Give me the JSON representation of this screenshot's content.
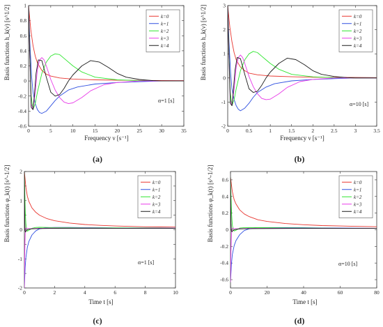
{
  "figure": {
    "panels": [
      {
        "caption": "(a)"
      },
      {
        "caption": "(b)"
      },
      {
        "caption": "(c)"
      },
      {
        "caption": "(d)"
      }
    ]
  },
  "chart_data": [
    {
      "type": "line",
      "title": "",
      "xlabel": "Frequency  ν [s⁻¹]",
      "ylabel": "Basis functions  h_k(ν) [s^1/2]",
      "xlim": [
        0,
        35
      ],
      "ylim": [
        -0.6,
        1.0
      ],
      "xticks": [
        0,
        5,
        10,
        15,
        20,
        25,
        30,
        35
      ],
      "yticks": [
        -0.6,
        -0.4,
        -0.2,
        0,
        0.2,
        0.4,
        0.6,
        0.8,
        1
      ],
      "ytick_labels": [
        "-0.6",
        "-0.4",
        "-0.2",
        "0",
        "0.2",
        "0.4",
        "0.6",
        "0.8",
        "1"
      ],
      "grid": false,
      "legend_position": "top-right",
      "annotation": "α=1 [s]",
      "series": [
        {
          "name": "k=0",
          "color": "#e8352f",
          "x": [
            0,
            0.5,
            1,
            1.5,
            2,
            3,
            4,
            5,
            7,
            10,
            15,
            20,
            25,
            30,
            35
          ],
          "y": [
            1.0,
            0.68,
            0.47,
            0.33,
            0.24,
            0.14,
            0.09,
            0.065,
            0.04,
            0.025,
            0.015,
            0.01,
            0.008,
            0.006,
            0.005
          ]
        },
        {
          "name": "k=1",
          "color": "#2e4fe0",
          "x": [
            0,
            0.3,
            0.7,
            1,
            1.5,
            2,
            2.5,
            3,
            4,
            5,
            6,
            7,
            9,
            11,
            15,
            20,
            25,
            30,
            35
          ],
          "y": [
            1.0,
            0.5,
            0.05,
            -0.15,
            -0.3,
            -0.38,
            -0.42,
            -0.43,
            -0.4,
            -0.33,
            -0.26,
            -0.2,
            -0.12,
            -0.08,
            -0.04,
            -0.02,
            -0.01,
            0,
            0
          ]
        },
        {
          "name": "k=2",
          "color": "#2ee62e",
          "x": [
            0,
            0.3,
            0.6,
            1,
            1.5,
            2,
            3,
            4,
            5,
            6,
            7,
            8,
            10,
            12,
            15,
            20,
            25,
            30,
            35
          ],
          "y": [
            1.0,
            0.35,
            -0.2,
            -0.38,
            -0.3,
            -0.15,
            0.1,
            0.25,
            0.33,
            0.36,
            0.35,
            0.3,
            0.2,
            0.12,
            0.05,
            0.015,
            0.005,
            0,
            0
          ]
        },
        {
          "name": "k=3",
          "color": "#e83ae8",
          "x": [
            0,
            0.3,
            0.6,
            1,
            1.5,
            2,
            2.5,
            3,
            3.5,
            4,
            5,
            6,
            7,
            8,
            9,
            10,
            12,
            14,
            17,
            20,
            25,
            30,
            35
          ],
          "y": [
            1.0,
            0.3,
            -0.3,
            -0.38,
            -0.15,
            0.15,
            0.28,
            0.31,
            0.28,
            0.2,
            0.02,
            -0.12,
            -0.22,
            -0.28,
            -0.3,
            -0.29,
            -0.22,
            -0.13,
            -0.05,
            -0.02,
            0,
            0,
            0
          ]
        },
        {
          "name": "k=4",
          "color": "#1a1a1a",
          "x": [
            0,
            0.3,
            0.6,
            1,
            1.3,
            1.7,
            2.2,
            3,
            4,
            5,
            6,
            7,
            8,
            9,
            10,
            12,
            14,
            16,
            18,
            20,
            22,
            25,
            28,
            30,
            35
          ],
          "y": [
            1.0,
            0.3,
            -0.35,
            -0.38,
            -0.2,
            0.1,
            0.28,
            0.27,
            0.05,
            -0.15,
            -0.2,
            -0.18,
            -0.1,
            0,
            0.08,
            0.2,
            0.27,
            0.25,
            0.18,
            0.1,
            0.05,
            0.02,
            0.005,
            0,
            0
          ]
        }
      ]
    },
    {
      "type": "line",
      "title": "",
      "xlabel": "Frequency  ν [s⁻¹]",
      "ylabel": "Basis functions  h_k(ν) [s^1/2]",
      "xlim": [
        0,
        3.5
      ],
      "ylim": [
        -2,
        3
      ],
      "xticks": [
        0,
        0.5,
        1,
        1.5,
        2,
        2.5,
        3,
        3.5
      ],
      "yticks": [
        -2,
        -1,
        0,
        1,
        2,
        3
      ],
      "ytick_labels": [
        "-2",
        "-1",
        "0",
        "1",
        "2",
        "3"
      ],
      "grid": false,
      "legend_position": "top-right",
      "annotation": "α=10 [s]",
      "series": [
        {
          "name": "k=0",
          "color": "#e8352f",
          "x": [
            0,
            0.05,
            0.1,
            0.15,
            0.2,
            0.3,
            0.4,
            0.5,
            0.7,
            1,
            1.5,
            2,
            2.5,
            3,
            3.5
          ],
          "y": [
            3.0,
            2.1,
            1.5,
            1.05,
            0.75,
            0.45,
            0.3,
            0.2,
            0.13,
            0.08,
            0.05,
            0.03,
            0.025,
            0.02,
            0.015
          ]
        },
        {
          "name": "k=1",
          "color": "#2e4fe0",
          "x": [
            0,
            0.03,
            0.07,
            0.1,
            0.15,
            0.2,
            0.25,
            0.3,
            0.4,
            0.5,
            0.6,
            0.7,
            0.9,
            1.1,
            1.5,
            2,
            2.5,
            3,
            3.5
          ],
          "y": [
            3.0,
            1.5,
            0.15,
            -0.45,
            -0.9,
            -1.15,
            -1.3,
            -1.36,
            -1.25,
            -1.05,
            -0.8,
            -0.6,
            -0.38,
            -0.24,
            -0.12,
            -0.06,
            -0.03,
            0,
            0
          ]
        },
        {
          "name": "k=2",
          "color": "#2ee62e",
          "x": [
            0,
            0.03,
            0.06,
            0.1,
            0.15,
            0.2,
            0.3,
            0.4,
            0.5,
            0.6,
            0.7,
            0.8,
            1,
            1.2,
            1.5,
            2,
            2.5,
            3,
            3.5
          ],
          "y": [
            3.0,
            1.05,
            -0.6,
            -1.15,
            -0.9,
            -0.45,
            0.3,
            0.75,
            1.0,
            1.1,
            1.05,
            0.9,
            0.6,
            0.36,
            0.15,
            0.045,
            0.015,
            0,
            0
          ]
        },
        {
          "name": "k=3",
          "color": "#e83ae8",
          "x": [
            0,
            0.03,
            0.06,
            0.1,
            0.15,
            0.2,
            0.25,
            0.3,
            0.35,
            0.4,
            0.5,
            0.6,
            0.7,
            0.8,
            0.9,
            1,
            1.2,
            1.4,
            1.7,
            2,
            2.5,
            3,
            3.5
          ],
          "y": [
            3.0,
            0.9,
            -0.9,
            -1.15,
            -0.45,
            0.45,
            0.85,
            0.95,
            0.85,
            0.6,
            0.06,
            -0.36,
            -0.66,
            -0.85,
            -0.9,
            -0.88,
            -0.66,
            -0.39,
            -0.15,
            -0.06,
            0,
            0,
            0
          ]
        },
        {
          "name": "k=4",
          "color": "#1a1a1a",
          "x": [
            0,
            0.03,
            0.06,
            0.1,
            0.13,
            0.17,
            0.22,
            0.3,
            0.4,
            0.5,
            0.6,
            0.7,
            0.8,
            0.9,
            1,
            1.2,
            1.4,
            1.6,
            1.8,
            2,
            2.2,
            2.5,
            2.8,
            3,
            3.5
          ],
          "y": [
            3.0,
            0.9,
            -1.05,
            -1.15,
            -0.6,
            0.3,
            0.85,
            0.8,
            0.15,
            -0.45,
            -0.6,
            -0.55,
            -0.3,
            0,
            0.24,
            0.6,
            0.82,
            0.76,
            0.55,
            0.3,
            0.15,
            0.06,
            0.015,
            0,
            0
          ]
        }
      ]
    },
    {
      "type": "line",
      "title": "",
      "xlabel": "Time  t [s]",
      "ylabel": "Basis functions  φ_k(t) [s^-1/2]",
      "xlim": [
        0,
        10
      ],
      "ylim": [
        -2,
        2
      ],
      "xticks": [
        0,
        2,
        4,
        6,
        8,
        10
      ],
      "yticks": [
        -2,
        -1.5,
        -1,
        -0.5,
        0,
        0.5,
        1,
        1.5,
        2
      ],
      "ytick_labels": [
        "-2",
        "",
        "-1",
        "",
        "0",
        "",
        "1",
        "",
        "2"
      ],
      "grid": false,
      "legend_position": "top-right",
      "annotation": "α=1 [s]",
      "series": [
        {
          "name": "k=0",
          "color": "#e8352f",
          "x": [
            0,
            0.1,
            0.2,
            0.3,
            0.5,
            0.75,
            1,
            1.5,
            2,
            3,
            4,
            5,
            6,
            7,
            8,
            9,
            10
          ],
          "y": [
            2.0,
            1.45,
            1.15,
            0.97,
            0.75,
            0.6,
            0.5,
            0.38,
            0.31,
            0.23,
            0.18,
            0.15,
            0.13,
            0.115,
            0.1,
            0.095,
            0.09
          ]
        },
        {
          "name": "k=1",
          "color": "#2e4fe0",
          "x": [
            0,
            0.05,
            0.1,
            0.2,
            0.3,
            0.5,
            0.75,
            1,
            1.5,
            2,
            3,
            4,
            5,
            6,
            8,
            10
          ],
          "y": [
            -2.0,
            -1.3,
            -0.95,
            -0.6,
            -0.4,
            -0.18,
            -0.04,
            0.03,
            0.07,
            0.08,
            0.08,
            0.075,
            0.07,
            0.065,
            0.06,
            0.055
          ]
        },
        {
          "name": "k=2",
          "color": "#2ee62e",
          "x": [
            0,
            0.03,
            0.06,
            0.1,
            0.15,
            0.2,
            0.3,
            0.5,
            0.75,
            1,
            1.5,
            2,
            3,
            4,
            6,
            8,
            10
          ],
          "y": [
            2.0,
            1.2,
            0.6,
            0.2,
            0.0,
            -0.05,
            -0.02,
            0.05,
            0.08,
            0.085,
            0.08,
            0.075,
            0.07,
            0.065,
            0.06,
            0.055,
            0.05
          ]
        },
        {
          "name": "k=3",
          "color": "#e83ae8",
          "x": [
            0,
            0.02,
            0.04,
            0.06,
            0.1,
            0.15,
            0.2,
            0.3,
            0.5,
            1,
            2,
            4,
            6,
            8,
            10
          ],
          "y": [
            -2.0,
            -1.0,
            -0.4,
            -0.1,
            0.05,
            0.06,
            0.04,
            0.03,
            0.04,
            0.05,
            0.055,
            0.055,
            0.05,
            0.05,
            0.05
          ]
        },
        {
          "name": "k=4",
          "color": "#1a1a1a",
          "x": [
            0,
            0.015,
            0.03,
            0.05,
            0.08,
            0.12,
            0.2,
            0.3,
            0.5,
            1,
            2,
            4,
            6,
            8,
            10
          ],
          "y": [
            2.0,
            0.9,
            0.25,
            -0.05,
            -0.08,
            -0.04,
            0.0,
            0.02,
            0.03,
            0.04,
            0.045,
            0.05,
            0.05,
            0.05,
            0.05
          ]
        }
      ]
    },
    {
      "type": "line",
      "title": "",
      "xlabel": "Time  t [s]",
      "ylabel": "Basis functions  φ_k(t) [s^-1/2]",
      "xlim": [
        0,
        80
      ],
      "ylim": [
        -0.7,
        0.7
      ],
      "xticks": [
        0,
        20,
        40,
        60,
        80
      ],
      "yticks": [
        -0.6,
        -0.4,
        -0.2,
        0,
        0.2,
        0.4,
        0.6
      ],
      "ytick_labels": [
        "-0.6",
        "-0.4",
        "-0.2",
        "0",
        "0.2",
        "0.4",
        "0.6"
      ],
      "grid": false,
      "legend_position": "top-right",
      "annotation": "α=10 [s]",
      "series": [
        {
          "name": "k=0",
          "color": "#e8352f",
          "x": [
            0,
            1,
            2,
            3,
            5,
            7.5,
            10,
            15,
            20,
            30,
            40,
            50,
            60,
            70,
            80
          ],
          "y": [
            0.63,
            0.46,
            0.36,
            0.31,
            0.24,
            0.19,
            0.16,
            0.12,
            0.1,
            0.075,
            0.06,
            0.05,
            0.045,
            0.04,
            0.036
          ]
        },
        {
          "name": "k=1",
          "color": "#2e4fe0",
          "x": [
            0,
            0.5,
            1,
            2,
            3,
            5,
            7.5,
            10,
            15,
            20,
            30,
            40,
            50,
            60,
            80
          ],
          "y": [
            -0.63,
            -0.42,
            -0.3,
            -0.19,
            -0.13,
            -0.06,
            -0.01,
            0.01,
            0.025,
            0.025,
            0.025,
            0.024,
            0.022,
            0.02,
            0.018
          ]
        },
        {
          "name": "k=2",
          "color": "#2ee62e",
          "x": [
            0,
            0.3,
            0.6,
            1,
            1.5,
            2,
            3,
            5,
            7.5,
            10,
            15,
            20,
            30,
            40,
            60,
            80
          ],
          "y": [
            0.63,
            0.38,
            0.19,
            0.06,
            0.0,
            -0.015,
            -0.006,
            0.02,
            0.026,
            0.027,
            0.025,
            0.024,
            0.022,
            0.02,
            0.018,
            0.016
          ]
        },
        {
          "name": "k=3",
          "color": "#e83ae8",
          "x": [
            0,
            0.2,
            0.4,
            0.6,
            1,
            1.5,
            2,
            3,
            5,
            10,
            20,
            40,
            60,
            80
          ],
          "y": [
            -0.63,
            -0.32,
            -0.13,
            -0.03,
            0.015,
            0.02,
            0.013,
            0.01,
            0.013,
            0.016,
            0.017,
            0.017,
            0.016,
            0.016
          ]
        },
        {
          "name": "k=4",
          "color": "#1a1a1a",
          "x": [
            0,
            0.15,
            0.3,
            0.5,
            0.8,
            1.2,
            2,
            3,
            5,
            10,
            20,
            40,
            60,
            80
          ],
          "y": [
            0.63,
            0.28,
            0.08,
            -0.015,
            -0.025,
            -0.013,
            0.0,
            0.006,
            0.01,
            0.013,
            0.014,
            0.016,
            0.016,
            0.016
          ]
        }
      ]
    }
  ]
}
